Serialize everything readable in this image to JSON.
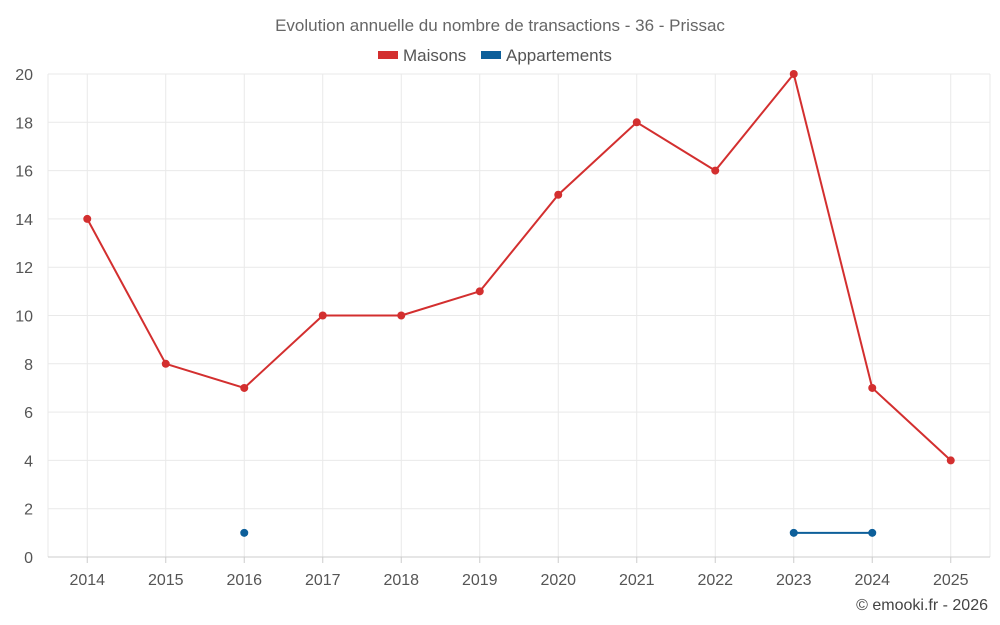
{
  "chart_data": {
    "type": "line",
    "title": "Evolution annuelle du nombre de transactions - 36 - Prissac",
    "categories": [
      "2014",
      "2015",
      "2016",
      "2017",
      "2018",
      "2019",
      "2020",
      "2021",
      "2022",
      "2023",
      "2024",
      "2025"
    ],
    "series": [
      {
        "name": "Maisons",
        "color": "#d32f2f",
        "values": [
          14,
          8,
          7,
          10,
          10,
          11,
          15,
          18,
          16,
          20,
          7,
          4
        ]
      },
      {
        "name": "Appartements",
        "color": "#0d5f9a",
        "values": [
          null,
          null,
          1,
          null,
          null,
          null,
          null,
          null,
          null,
          1,
          1,
          null
        ]
      }
    ],
    "ylim": [
      0,
      20
    ],
    "yticks": [
      "0",
      "2",
      "4",
      "6",
      "8",
      "10",
      "12",
      "14",
      "16",
      "18",
      "20"
    ],
    "grid": true,
    "legend_position": "top-center"
  },
  "credit": "© emooki.fr - 2026"
}
